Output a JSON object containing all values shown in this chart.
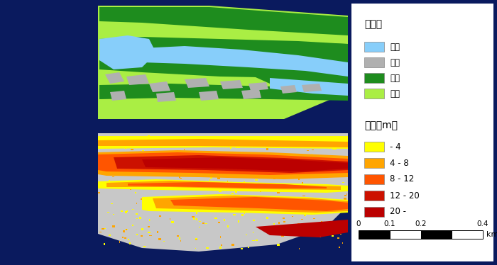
{
  "background_color": "#0a1a5e",
  "title1": "植生図",
  "title2": "樹高（m）",
  "legend1_items": [
    {
      "label": "水面",
      "color": "#87CEFA"
    },
    {
      "label": "裸地",
      "color": "#b0b0b0"
    },
    {
      "label": "樹林",
      "color": "#1e8c1e"
    },
    {
      "label": "草地",
      "color": "#aaee44"
    }
  ],
  "legend2_items": [
    {
      "label": "- 4",
      "color": "#FFFF00"
    },
    {
      "label": "4 - 8",
      "color": "#FFA500"
    },
    {
      "label": "8 - 12",
      "color": "#FF5500"
    },
    {
      "label": "12 - 20",
      "color": "#CC1100"
    },
    {
      "label": "20 -",
      "color": "#BB0000"
    }
  ],
  "map1_grass": "#aaee44",
  "map1_forest": "#1e8c1e",
  "map1_water": "#87CEFA",
  "map1_bare": "#b0b0b0",
  "map2_bg": "#c8c8c8",
  "map2_yellow": "#FFFF00",
  "map2_orange1": "#FFA500",
  "map2_orange2": "#FF5500",
  "map2_red1": "#CC1100",
  "map2_red2": "#BB0000"
}
